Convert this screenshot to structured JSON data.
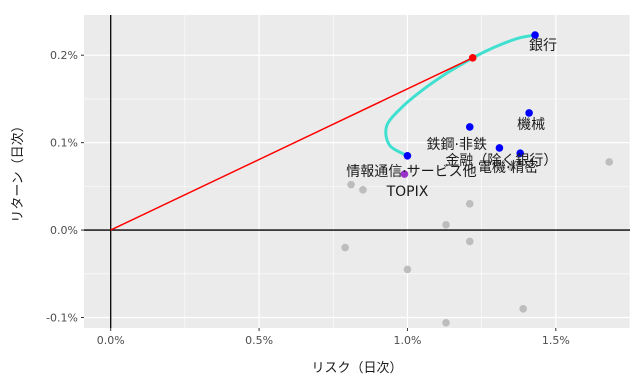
{
  "chart_data": {
    "type": "scatter",
    "xlabel": "リスク（日次）",
    "ylabel": "リターン（日次）",
    "xlim": [
      -0.0009,
      0.0175
    ],
    "ylim": [
      -0.00112,
      0.00246
    ],
    "x_ticks": [
      0.0,
      0.005,
      0.01,
      0.015
    ],
    "x_tick_labels": [
      "0.0%",
      "0.5%",
      "1.0%",
      "1.5%"
    ],
    "y_ticks": [
      -0.001,
      0.0,
      0.001,
      0.002
    ],
    "y_tick_labels": [
      "-0.1%",
      "0.0%",
      "0.1%",
      "0.2%"
    ],
    "grid": true,
    "background": "#ebebeb",
    "reference_lines": {
      "x": 0.0,
      "y": 0.0,
      "color": "#000000"
    },
    "efficient_frontier": {
      "color": "#40e0d0",
      "points": [
        [
          0.0143,
          0.00223
        ],
        [
          0.0138,
          0.0022
        ],
        [
          0.0132,
          0.00213
        ],
        [
          0.0126,
          0.00204
        ],
        [
          0.012,
          0.00193
        ],
        [
          0.0113,
          0.00179
        ],
        [
          0.0105,
          0.0016
        ],
        [
          0.0098,
          0.0014
        ],
        [
          0.0093,
          0.00119
        ],
        [
          0.0094,
          0.00097
        ],
        [
          0.01,
          0.00085
        ]
      ]
    },
    "tangent_line": {
      "color": "#ff0000",
      "from": [
        0.0,
        0.0
      ],
      "to": [
        0.0122,
        0.00197
      ]
    },
    "tangency_point": {
      "x": 0.0122,
      "y": 0.00197,
      "color": "#ff0000"
    },
    "labeled_points": [
      {
        "label": "銀行",
        "x": 0.0143,
        "y": 0.00223,
        "color": "#0000ff"
      },
      {
        "label": "機械",
        "x": 0.0141,
        "y": 0.00134,
        "color": "#0000ff"
      },
      {
        "label": "鉄鋼·非鉄",
        "x": 0.0121,
        "y": 0.00118,
        "color": "#0000ff"
      },
      {
        "label": "金融（除く銀行）",
        "x": 0.0131,
        "y": 0.00094,
        "color": "#0000ff"
      },
      {
        "label": "電機·精密",
        "x": 0.0138,
        "y": 0.00088,
        "color": "#0000ff"
      },
      {
        "label": "情報通信·サービス他",
        "x": 0.01,
        "y": 0.00085,
        "color": "#0000ff"
      },
      {
        "label": "TOPIX",
        "x": 0.0099,
        "y": 0.00064,
        "color": "#9932cc"
      }
    ],
    "other_points": {
      "color": "#bdbdbd",
      "points": [
        [
          0.0081,
          0.00052
        ],
        [
          0.0085,
          0.00046
        ],
        [
          0.0121,
          0.0003
        ],
        [
          0.0113,
          6e-05
        ],
        [
          0.0079,
          -0.0002
        ],
        [
          0.0121,
          -0.00013
        ],
        [
          0.01,
          -0.00045
        ],
        [
          0.0139,
          -0.0009
        ],
        [
          0.0113,
          -0.00106
        ],
        [
          0.0168,
          0.00078
        ],
        [
          0.0135,
          0.00072
        ]
      ]
    }
  }
}
